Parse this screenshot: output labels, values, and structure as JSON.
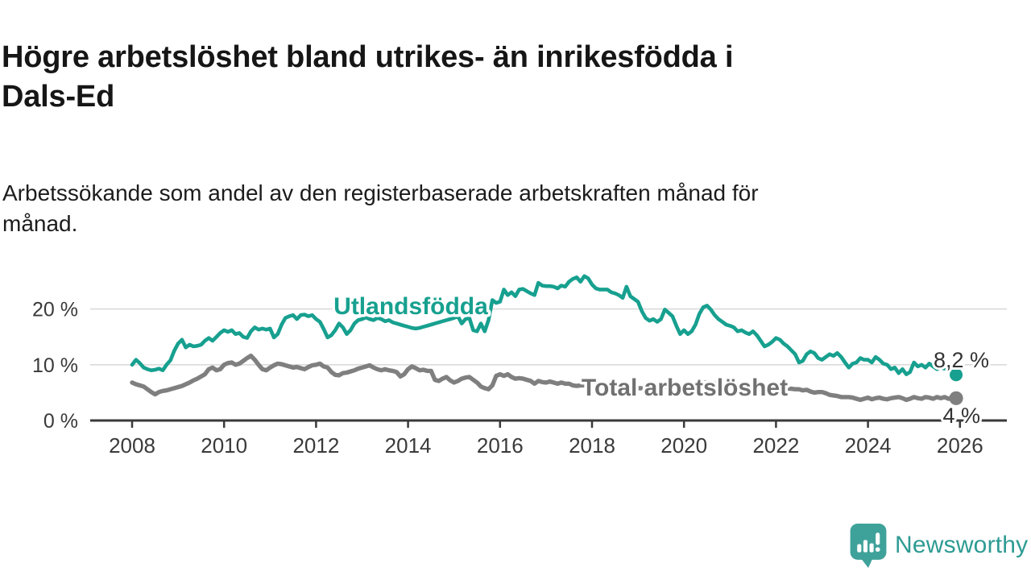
{
  "header": {
    "title_lines": [
      "Högre arbetslöshet bland utrikes- än inrikesfödda i",
      "Dals-Ed"
    ],
    "subtitle_lines": [
      "Arbetssökande som andel av den registerbaserade arbetskraften månad för",
      "månad."
    ]
  },
  "branding": {
    "name": "Newsworthy",
    "icon": "newsworthy-speech-bubble-barchart-icon",
    "text_color": "#2d9b93",
    "icon_color": "#3fa29a"
  },
  "colors": {
    "foreign_born_line": "#17a08f",
    "total_line": "#7f7f7f",
    "total_label": "#717171",
    "axis": "#3a3a3a",
    "gridline": "#dadada",
    "end_label_text": "#333333",
    "title_text": "#161616"
  },
  "chart_data": {
    "type": "line",
    "title": "Högre arbetslöshet bland utrikes- än inrikesfödda i Dals-Ed",
    "subtitle": "Arbetssökande som andel av den registerbaserade arbetskraften månad för månad.",
    "unit": "percent of registered labour force",
    "x_start_year": 2008,
    "x_months_per_point": 1,
    "x_ticks": [
      2008,
      2010,
      2012,
      2014,
      2016,
      2018,
      2020,
      2022,
      2024,
      2026
    ],
    "y_ticks": [
      {
        "v": 0,
        "label": "0 %"
      },
      {
        "v": 10,
        "label": "10 %"
      },
      {
        "v": 20,
        "label": "20 %"
      }
    ],
    "ylim": [
      0,
      27
    ],
    "grid": "horizontal-only",
    "series": [
      {
        "name": "Utlandsfödda",
        "color": "#17a08f",
        "end_label": "8,2 %",
        "end_value": 8.2,
        "dashed_tail_from_index": 213,
        "values": [
          10.0,
          10.9,
          10.3,
          9.5,
          9.2,
          9.0,
          9.1,
          9.3,
          9.0,
          10.0,
          10.8,
          12.5,
          13.8,
          14.5,
          13.1,
          13.6,
          13.3,
          13.4,
          13.6,
          14.3,
          14.8,
          14.3,
          15.0,
          15.7,
          16.2,
          15.9,
          16.2,
          15.5,
          15.7,
          15.0,
          14.8,
          16.0,
          16.7,
          16.3,
          16.5,
          16.3,
          16.5,
          14.9,
          15.5,
          17.2,
          18.4,
          18.7,
          18.9,
          18.2,
          18.9,
          19.0,
          18.7,
          18.9,
          18.2,
          17.7,
          16.4,
          14.9,
          15.3,
          16.2,
          17.4,
          16.7,
          15.5,
          16.2,
          17.4,
          18.0,
          18.2,
          18.5,
          18.2,
          18.0,
          18.4,
          18.2,
          17.8,
          18.0,
          17.6,
          17.4,
          17.2,
          17.0,
          16.8,
          16.6,
          16.5,
          16.6,
          16.8,
          17.0,
          17.2,
          17.4,
          17.6,
          17.8,
          18.0,
          18.2,
          18.4,
          18.7,
          17.4,
          18.2,
          18.4,
          16.2,
          16.0,
          17.4,
          16.0,
          18.0,
          21.6,
          21.1,
          21.3,
          23.5,
          22.5,
          23.0,
          22.3,
          23.5,
          23.6,
          23.2,
          22.8,
          22.5,
          24.7,
          24.2,
          24.1,
          24.1,
          24.0,
          23.7,
          24.2,
          24.0,
          24.9,
          25.4,
          25.7,
          24.9,
          25.9,
          25.5,
          24.4,
          23.7,
          23.5,
          23.5,
          23.5,
          23.0,
          22.8,
          22.5,
          22.0,
          24.0,
          22.3,
          21.8,
          21.3,
          19.6,
          18.4,
          17.9,
          18.2,
          17.7,
          18.2,
          19.9,
          19.3,
          18.7,
          17.0,
          15.5,
          16.2,
          15.5,
          16.0,
          17.2,
          19.1,
          20.3,
          20.6,
          19.9,
          18.9,
          18.2,
          17.7,
          17.2,
          17.0,
          16.7,
          16.0,
          16.2,
          15.8,
          15.5,
          16.0,
          15.3,
          14.3,
          13.3,
          13.6,
          14.1,
          14.8,
          14.5,
          13.8,
          13.3,
          12.6,
          11.9,
          10.4,
          10.7,
          11.9,
          12.4,
          12.1,
          11.2,
          10.9,
          11.4,
          11.9,
          11.6,
          12.1,
          11.4,
          10.4,
          9.5,
          10.2,
          10.4,
          11.2,
          10.9,
          10.9,
          10.4,
          11.4,
          10.9,
          10.2,
          10.0,
          9.2,
          9.5,
          8.5,
          9.2,
          8.3,
          8.7,
          10.4,
          9.7,
          10.0,
          9.5,
          10.2,
          9.7,
          9.2,
          9.5,
          9.3,
          9.1,
          8.7,
          8.2
        ]
      },
      {
        "name": "Total arbetslöshet",
        "color": "#7f7f7f",
        "end_label": "4 %",
        "end_value": 4.0,
        "values": [
          6.8,
          6.5,
          6.3,
          6.1,
          5.6,
          5.1,
          4.7,
          5.1,
          5.3,
          5.4,
          5.6,
          5.8,
          6.0,
          6.2,
          6.5,
          6.8,
          7.2,
          7.5,
          7.9,
          8.3,
          9.2,
          9.5,
          9.0,
          9.2,
          10.0,
          10.3,
          10.4,
          10.0,
          10.2,
          10.7,
          11.2,
          11.6,
          10.9,
          10.0,
          9.2,
          9.0,
          9.5,
          9.9,
          10.2,
          10.1,
          9.9,
          9.7,
          9.5,
          9.6,
          9.4,
          9.2,
          9.6,
          9.9,
          10.0,
          10.2,
          9.7,
          9.5,
          8.7,
          8.2,
          8.1,
          8.5,
          8.6,
          8.8,
          9.0,
          9.3,
          9.5,
          9.7,
          9.9,
          9.5,
          9.2,
          9.0,
          9.2,
          9.0,
          8.9,
          8.7,
          7.9,
          8.3,
          9.2,
          9.7,
          9.4,
          9.0,
          9.1,
          8.9,
          8.9,
          7.3,
          7.1,
          7.5,
          7.8,
          7.2,
          6.8,
          7.1,
          7.5,
          7.7,
          7.8,
          7.3,
          6.8,
          6.1,
          5.8,
          5.6,
          6.3,
          8.0,
          8.3,
          8.0,
          8.3,
          7.8,
          7.5,
          7.6,
          7.5,
          7.3,
          7.1,
          6.6,
          7.1,
          6.9,
          6.8,
          7.0,
          6.8,
          6.6,
          6.8,
          6.6,
          6.6,
          6.3,
          6.2,
          6.3,
          6.3,
          6.3,
          6.2,
          6.2,
          6.1,
          6.1,
          6.0,
          6.0,
          5.9,
          5.9,
          5.8,
          5.8,
          5.8,
          5.8,
          5.8,
          5.8,
          5.8,
          5.9,
          5.9,
          5.9,
          6.0,
          6.0,
          6.0,
          6.1,
          6.1,
          6.2,
          6.3,
          6.4,
          6.5,
          6.6,
          6.7,
          6.8,
          6.8,
          6.7,
          6.7,
          6.6,
          6.6,
          6.5,
          6.5,
          6.4,
          6.4,
          6.3,
          6.3,
          6.2,
          6.2,
          6.1,
          6.1,
          6.0,
          6.0,
          5.9,
          5.9,
          5.8,
          5.8,
          5.7,
          5.7,
          5.6,
          5.6,
          5.4,
          5.5,
          5.2,
          5.0,
          5.1,
          5.1,
          4.9,
          4.6,
          4.5,
          4.4,
          4.2,
          4.2,
          4.2,
          4.1,
          3.9,
          3.7,
          3.9,
          4.1,
          3.8,
          4.0,
          4.1,
          3.9,
          3.8,
          4.0,
          4.1,
          4.2,
          4.0,
          3.7,
          3.9,
          4.2,
          4.0,
          3.9,
          4.2,
          4.1,
          3.9,
          4.2,
          4.0,
          4.2,
          3.9,
          4.1,
          4.0
        ]
      }
    ],
    "legend_position": "inline-labels-on-chart",
    "annotations": [
      "8,2 %",
      "4 %"
    ]
  }
}
